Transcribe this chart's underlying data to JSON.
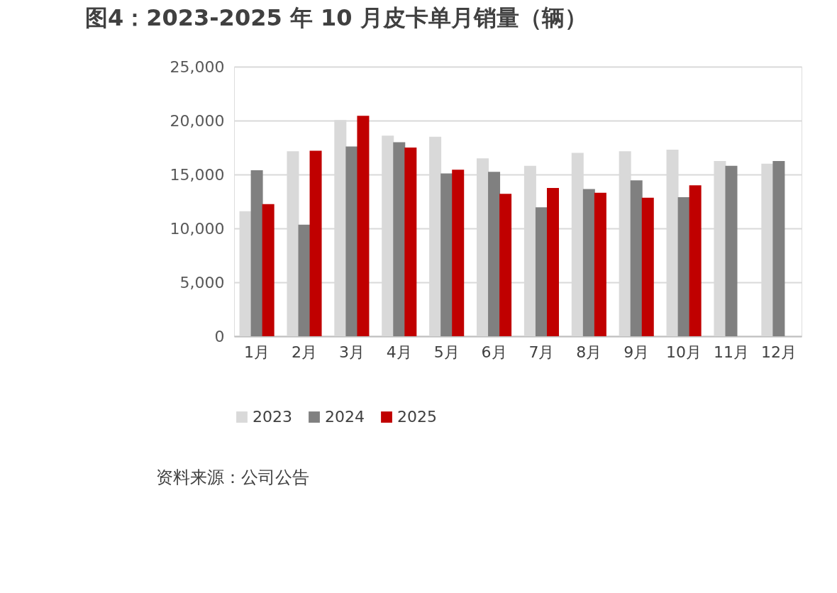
{
  "chart_data": {
    "type": "bar",
    "title": "图4：2023-2025 年 10 月皮卡单月销量（辆）",
    "categories": [
      "1月",
      "2月",
      "3月",
      "4月",
      "5月",
      "6月",
      "7月",
      "8月",
      "9月",
      "10月",
      "11月",
      "12月"
    ],
    "series": [
      {
        "name": "2023",
        "color": "#d9d9d9",
        "values": [
          11600,
          17150,
          20050,
          18600,
          18500,
          16500,
          15800,
          17000,
          17150,
          17300,
          16250,
          16000
        ]
      },
      {
        "name": "2024",
        "color": "#808080",
        "values": [
          15400,
          10350,
          17600,
          18000,
          15100,
          15250,
          11950,
          13650,
          14450,
          12900,
          15800,
          16250
        ]
      },
      {
        "name": "2025",
        "color": "#c00000",
        "values": [
          12250,
          17200,
          20450,
          17500,
          15450,
          13200,
          13750,
          13300,
          12850,
          14000,
          null,
          null
        ]
      }
    ],
    "ylim": [
      0,
      25000
    ],
    "yticks": [
      0,
      {
        "value": 5000,
        "label": "5,000"
      },
      {
        "value": 10000,
        "label": "10,000"
      },
      {
        "value": 15000,
        "label": "15,000"
      },
      {
        "value": 20000,
        "label": "20,000"
      },
      {
        "value": 25000,
        "label": "25,000"
      }
    ],
    "grid": "y",
    "legend": "bottom",
    "annotations": [
      "资料来源：公司公告"
    ]
  }
}
